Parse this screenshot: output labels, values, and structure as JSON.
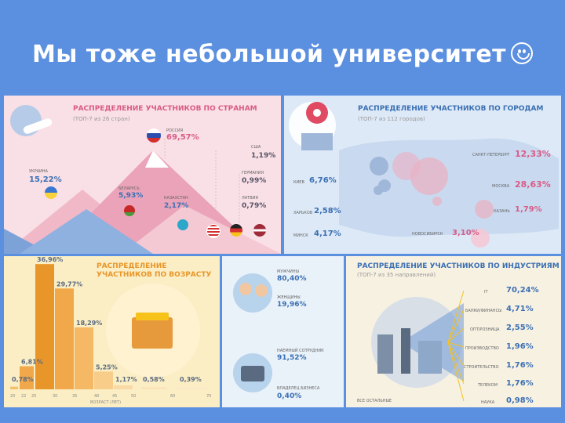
{
  "slide": {
    "title": "Мы тоже небольшой университет"
  },
  "countries": {
    "heading": "РАСПРЕДЕЛЕНИЕ УЧАСТНИКОВ ПО СТРАНАМ",
    "subtitle": "(ТОП-7 из 26 стран)",
    "items": [
      {
        "name": "РОССИЯ",
        "value": "69,57%"
      },
      {
        "name": "США",
        "value": "1,19%"
      },
      {
        "name": "ГЕРМАНИЯ",
        "value": "0,99%"
      },
      {
        "name": "ЛАТВИЯ",
        "value": "0,79%"
      },
      {
        "name": "УКРАИНА",
        "value": "15,22%"
      },
      {
        "name": "БЕЛАРУСЬ",
        "value": "5,93%"
      },
      {
        "name": "КАЗАХСТАН",
        "value": "2,17%"
      }
    ],
    "colors": {
      "russia": "#d32f2f",
      "usa": "#1f3f8c",
      "germany": "#222222",
      "latvia": "#9e2a3a",
      "ukraine": "#3a78d0",
      "belarus": "#c62828",
      "kazakhstan": "#2aa7c9"
    }
  },
  "cities": {
    "heading": "РАСПРЕДЕЛЕНИЕ УЧАСТНИКОВ ПО ГОРОДАМ",
    "subtitle": "(ТОП-7 из 112 городов)",
    "items": [
      {
        "name": "САНКТ-ПЕТЕРБУРГ",
        "value": "12,33%"
      },
      {
        "name": "МОСКВА",
        "value": "28,63%"
      },
      {
        "name": "КАЗАНЬ",
        "value": "1,79%"
      },
      {
        "name": "НОВОСИБИРСК",
        "value": "3,10%"
      },
      {
        "name": "КИЕВ",
        "value": "6,76%"
      },
      {
        "name": "ХАРЬКОВ",
        "value": "2,58%"
      },
      {
        "name": "МИНСК",
        "value": "4,17%"
      }
    ]
  },
  "age": {
    "heading": "РАСПРЕДЕЛЕНИЕ УЧАСТНИКОВ ПО ВОЗРАСТУ",
    "labels": [
      "0,78%",
      "6,81%",
      "36,96%",
      "29,77%",
      "18,29%",
      "5,25%",
      "1,17%",
      "0,58%",
      "0,39%"
    ],
    "values": [
      0.78,
      6.81,
      36.96,
      29.77,
      18.29,
      5.25,
      1.17,
      0.58,
      0.39
    ],
    "ticks": [
      "20",
      "22",
      "25",
      "30",
      "35",
      "40",
      "45",
      "50",
      "60",
      "70"
    ],
    "axis_label": "ВОЗРАСТ (ЛЕТ)"
  },
  "gender": {
    "items": [
      {
        "name": "МУЖЧИНЫ",
        "value": "80,40%"
      },
      {
        "name": "ЖЕНЩИНЫ",
        "value": "19,96%"
      },
      {
        "name": "НАЕМНЫЙ СОТРУДНИК",
        "value": "91,52%"
      },
      {
        "name": "ВЛАДЕЛЕЦ БИЗНЕСА",
        "value": "0,40%"
      }
    ]
  },
  "industry": {
    "heading": "РАСПРЕДЕЛЕНИЕ УЧАСТНИКОВ ПО ИНДУСТРИЯМ",
    "subtitle": "(ТОП-7 из 35 направлений)",
    "items": [
      {
        "name": "IT",
        "value": "70,24%"
      },
      {
        "name": "БАНКИ/ФИНАНСЫ",
        "value": "4,71%"
      },
      {
        "name": "ОПТ/РОЗНИЦА",
        "value": "2,55%"
      },
      {
        "name": "ПРОИЗВОДСТВО",
        "value": "1,96%"
      },
      {
        "name": "СТРОИТЕЛЬСТВО",
        "value": "1,76%"
      },
      {
        "name": "ТЕЛЕКОМ",
        "value": "1,76%"
      },
      {
        "name": "НАУКА",
        "value": "0,98%"
      }
    ],
    "others_label": "ВСЕ ОСТАЛЬНЫЕ"
  }
}
